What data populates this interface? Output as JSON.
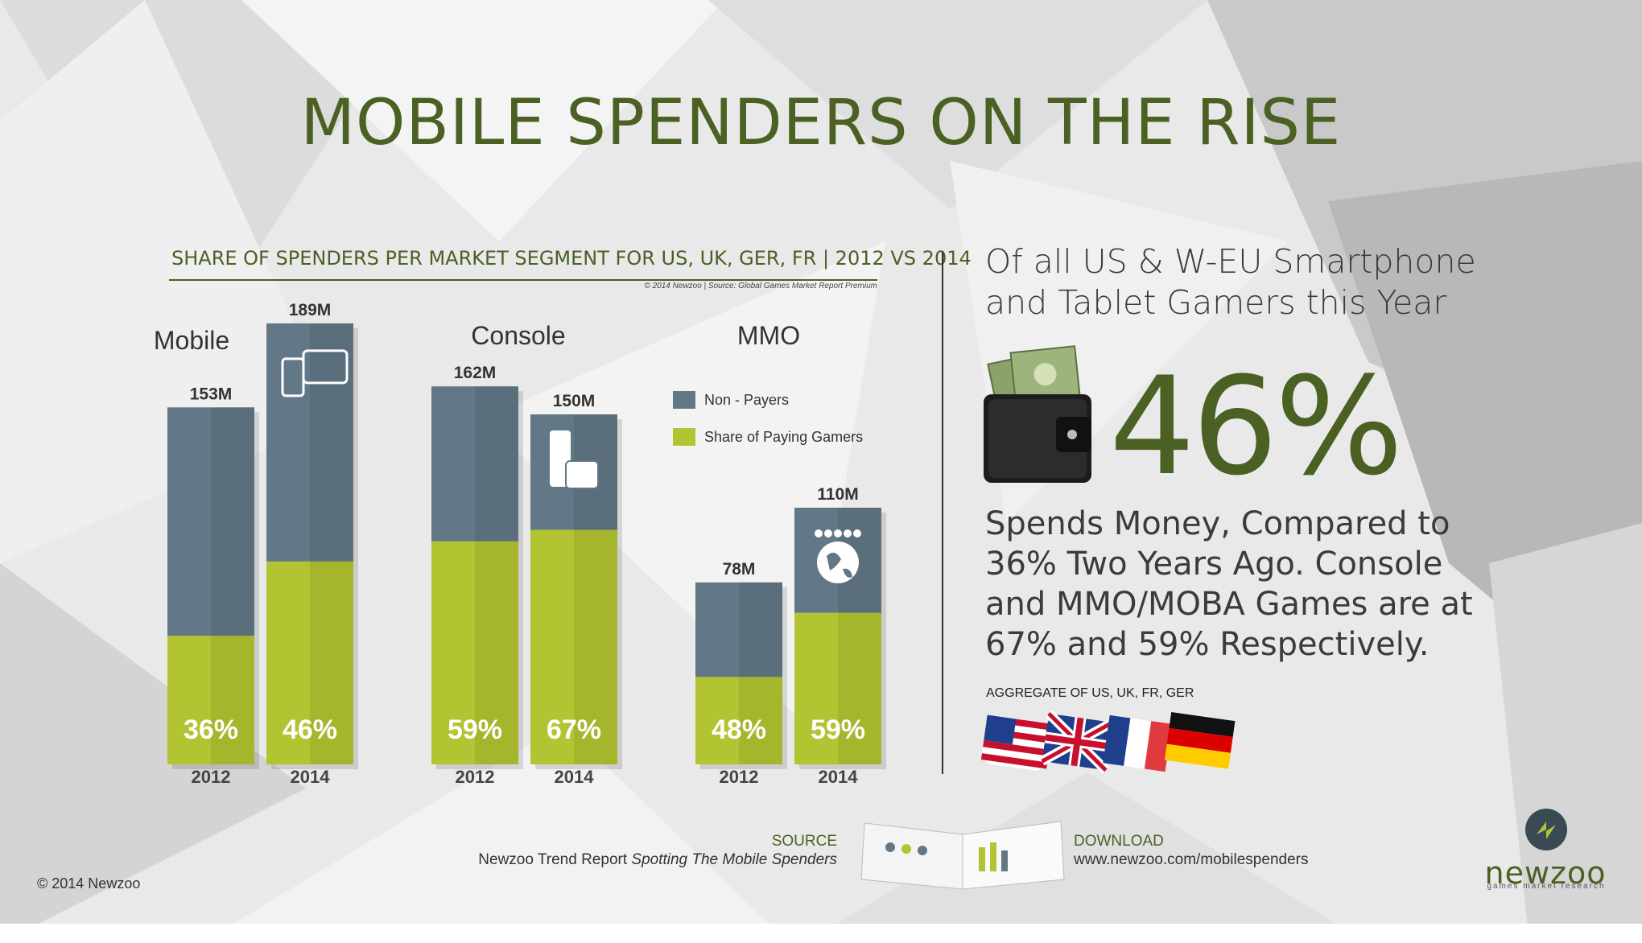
{
  "title": "MOBILE SPENDERS ON THE RISE",
  "chart_title": "SHARE OF SPENDERS PER MARKET SEGMENT FOR US, UK, GER, FR | 2012 VS 2014",
  "chart_credit": "© 2014 Newzoo  |  Source: Global Games Market Report Premium",
  "colors": {
    "brand_green": "#4a6123",
    "non_payers": "#637887",
    "paying": "#b2c431",
    "divider": "#333333"
  },
  "chart_data": {
    "type": "bar",
    "stacked": true,
    "title": "SHARE OF SPENDERS PER MARKET SEGMENT FOR US, UK, GER, FR | 2012 VS 2014",
    "legend": {
      "placement": "right-of-chart",
      "entries": [
        "Non - Payers",
        "Share of Paying Gamers"
      ]
    },
    "groups": [
      {
        "name": "Mobile",
        "icon": "phone-tablet-icon",
        "bars": [
          {
            "year": "2012",
            "total_label": "153M",
            "total": 153,
            "paying_share": 36,
            "share_label": "36%"
          },
          {
            "year": "2014",
            "total_label": "189M",
            "total": 189,
            "paying_share": 46,
            "share_label": "46%"
          }
        ]
      },
      {
        "name": "Console",
        "icon": "console-handheld-icon",
        "bars": [
          {
            "year": "2012",
            "total_label": "162M",
            "total": 162,
            "paying_share": 59,
            "share_label": "59%"
          },
          {
            "year": "2014",
            "total_label": "150M",
            "total": 150,
            "paying_share": 67,
            "share_label": "67%"
          }
        ]
      },
      {
        "name": "MMO",
        "icon": "globe-players-icon",
        "bars": [
          {
            "year": "2012",
            "total_label": "78M",
            "total": 78,
            "paying_share": 48,
            "share_label": "48%"
          },
          {
            "year": "2014",
            "total_label": "110M",
            "total": 110,
            "paying_share": 59,
            "share_label": "59%"
          }
        ]
      }
    ],
    "ylim": [
      0,
      189
    ],
    "grid": false
  },
  "headline": "Of all US & W-EU Smartphone and Tablet Gamers this Year",
  "big_stat": "46%",
  "body_text": "Spends Money, Compared to 36% Two Years Ago. Console and MMO/MOBA Games are at 67% and 59% Respectively.",
  "aggregate": "AGGREGATE OF US, UK, FR, GER",
  "flags": [
    "us-flag-icon",
    "uk-flag-icon",
    "france-flag-icon",
    "germany-flag-icon"
  ],
  "source": {
    "label": "SOURCE",
    "prefix": "Newzoo Trend Report ",
    "title": "Spotting The Mobile Spenders"
  },
  "download": {
    "label": "DOWNLOAD",
    "url": "www.newzoo.com/mobilespenders"
  },
  "copyright": "© 2014 Newzoo",
  "brand": {
    "name": "newzoo",
    "tagline": "games market research"
  }
}
